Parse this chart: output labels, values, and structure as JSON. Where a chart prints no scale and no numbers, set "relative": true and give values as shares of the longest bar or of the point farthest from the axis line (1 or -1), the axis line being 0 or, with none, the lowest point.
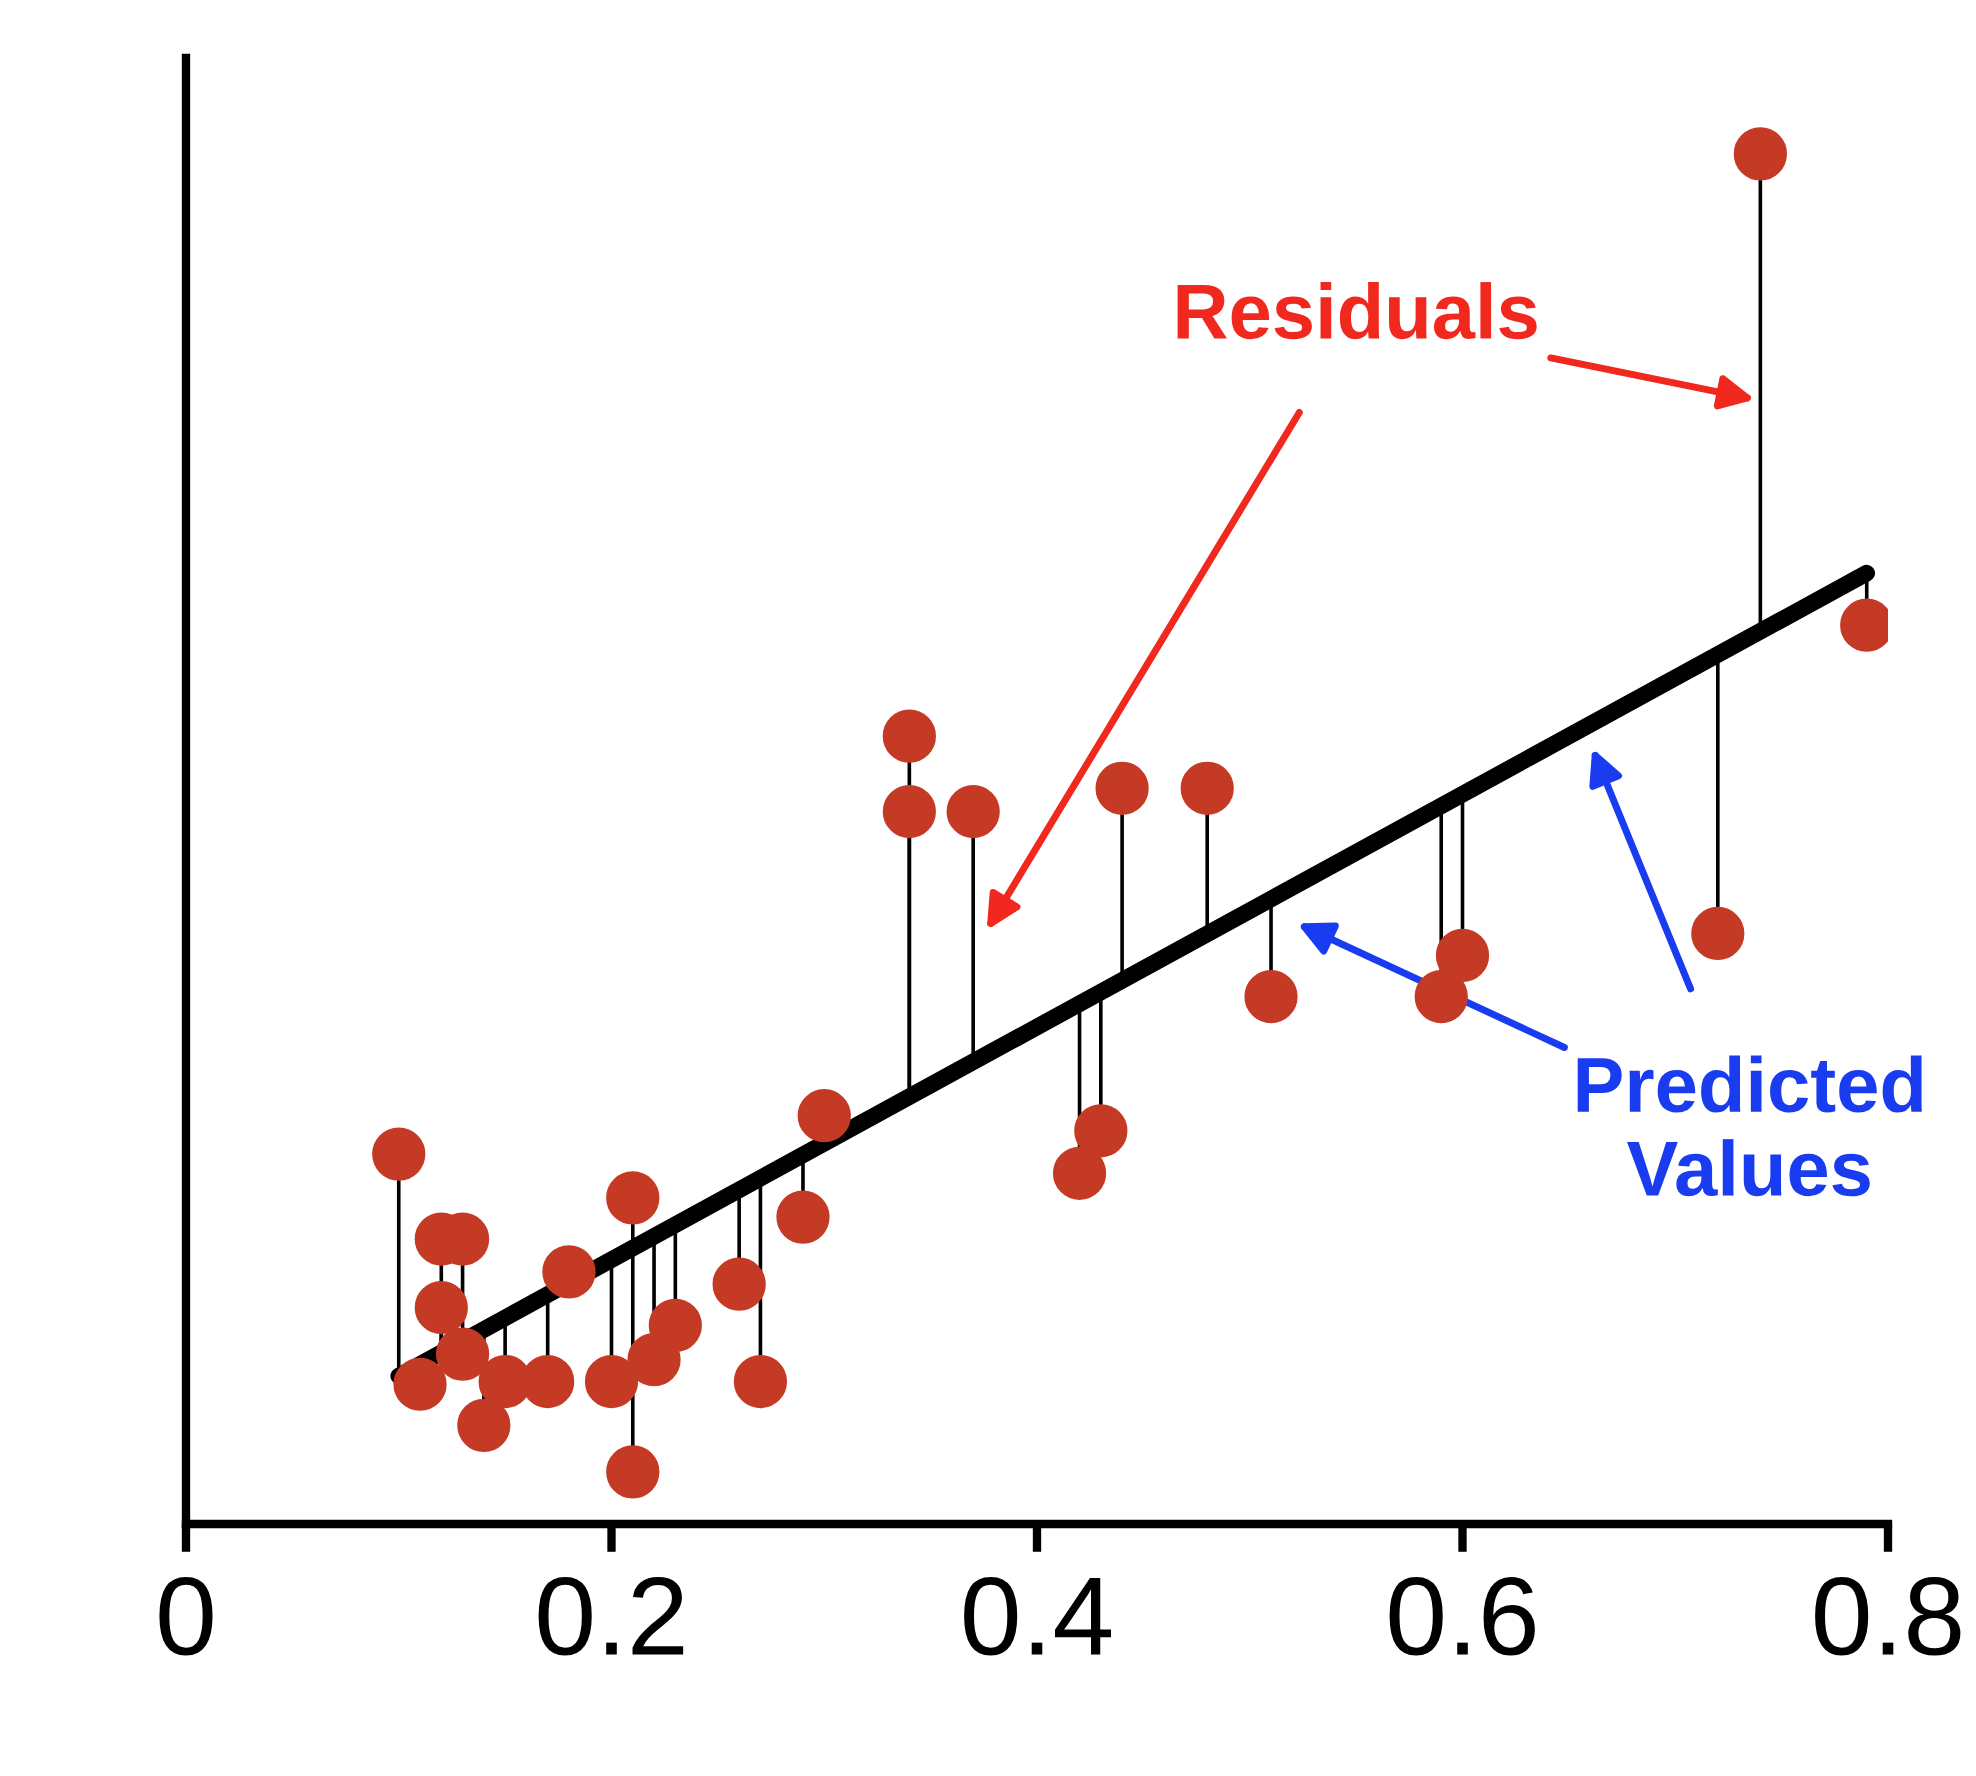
{
  "chart_data": {
    "type": "scatter",
    "relative": true,
    "xlim": [
      0,
      0.8
    ],
    "xticks": [
      0,
      0.2,
      0.4,
      0.6,
      0.8
    ],
    "tick_labels": "x",
    "grid": false,
    "legend": false,
    "annotations": [
      "Residuals",
      "Predicted Values"
    ],
    "series": [
      {
        "type": "scatter",
        "color": "#c43a25",
        "marker": "circle",
        "x": [
          0.1,
          0.11,
          0.12,
          0.13,
          0.12,
          0.13,
          0.14,
          0.15,
          0.17,
          0.18,
          0.2,
          0.21,
          0.21,
          0.22,
          0.23,
          0.26,
          0.27,
          0.29,
          0.3,
          0.34,
          0.34,
          0.37,
          0.42,
          0.43,
          0.44,
          0.48,
          0.51,
          0.59,
          0.6,
          0.72,
          0.74,
          0.79
        ],
        "values": [
          0.27,
          0.102,
          0.208,
          0.208,
          0.158,
          0.124,
          0.072,
          0.104,
          0.104,
          0.184,
          0.104,
          0.238,
          0.038,
          0.12,
          0.145,
          0.175,
          0.104,
          0.224,
          0.298,
          0.575,
          0.52,
          0.52,
          0.256,
          0.287,
          0.537,
          0.537,
          0.385,
          0.385,
          0.415,
          0.431,
          1.0,
          0.656
        ]
      },
      {
        "type": "line",
        "color": "#000000",
        "x": [
          0.1,
          0.79
        ],
        "values": [
          0.108,
          0.694
        ]
      }
    ]
  }
}
